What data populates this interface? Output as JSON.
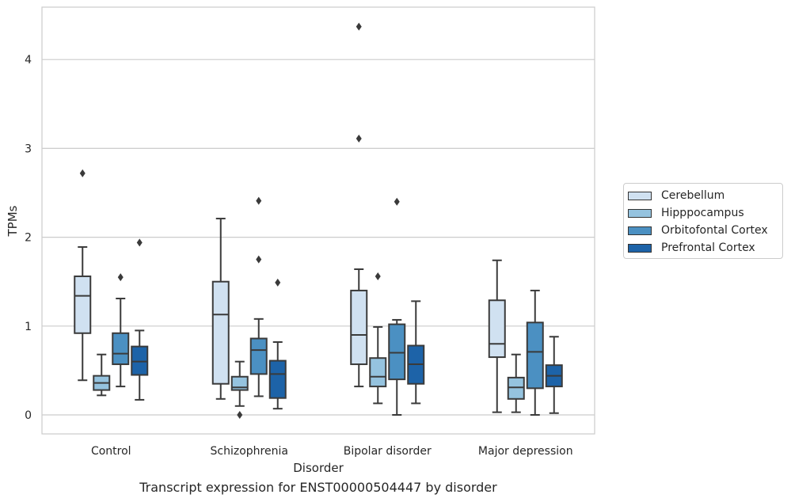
{
  "chart_data": {
    "type": "boxplot",
    "title": "Transcript expression for ENST00000504447 by disorder",
    "xlabel": "Disorder",
    "ylabel": "TPMs",
    "ylim": [
      -0.2,
      4.6
    ],
    "yticks": [
      0,
      1,
      2,
      3,
      4
    ],
    "grid": true,
    "legend_position": "right",
    "categories": [
      "Control",
      "Schizophrenia",
      "Bipolar disorder",
      "Major depression"
    ],
    "series": [
      {
        "name": "Cerebellum",
        "color": "#d0e1f1",
        "boxes": [
          {
            "whislo": 0.39,
            "q1": 0.92,
            "med": 1.34,
            "q3": 1.56,
            "whishi": 1.89,
            "fliers": [
              2.72
            ]
          },
          {
            "whislo": 0.18,
            "q1": 0.35,
            "med": 1.13,
            "q3": 1.5,
            "whishi": 2.21,
            "fliers": []
          },
          {
            "whislo": 0.32,
            "q1": 0.57,
            "med": 0.9,
            "q3": 1.4,
            "whishi": 1.64,
            "fliers": [
              3.11,
              4.37
            ]
          },
          {
            "whislo": 0.03,
            "q1": 0.65,
            "med": 0.8,
            "q3": 1.29,
            "whishi": 1.74,
            "fliers": []
          }
        ]
      },
      {
        "name": "Hipppocampus",
        "color": "#95c3df",
        "boxes": [
          {
            "whislo": 0.22,
            "q1": 0.28,
            "med": 0.36,
            "q3": 0.44,
            "whishi": 0.68,
            "fliers": []
          },
          {
            "whislo": 0.1,
            "q1": 0.28,
            "med": 0.31,
            "q3": 0.43,
            "whishi": 0.6,
            "fliers": [
              0.0
            ]
          },
          {
            "whislo": 0.13,
            "q1": 0.32,
            "med": 0.43,
            "q3": 0.64,
            "whishi": 0.99,
            "fliers": [
              1.56
            ]
          },
          {
            "whislo": 0.03,
            "q1": 0.18,
            "med": 0.31,
            "q3": 0.42,
            "whishi": 0.68,
            "fliers": []
          }
        ]
      },
      {
        "name": "Orbitofontal Cortex",
        "color": "#4b90c2",
        "boxes": [
          {
            "whislo": 0.32,
            "q1": 0.57,
            "med": 0.69,
            "q3": 0.92,
            "whishi": 1.31,
            "fliers": [
              1.55
            ]
          },
          {
            "whislo": 0.21,
            "q1": 0.46,
            "med": 0.73,
            "q3": 0.86,
            "whishi": 1.08,
            "fliers": [
              1.75,
              2.41
            ]
          },
          {
            "whislo": 0.0,
            "q1": 0.4,
            "med": 0.7,
            "q3": 1.02,
            "whishi": 1.07,
            "fliers": [
              2.4
            ]
          },
          {
            "whislo": 0.0,
            "q1": 0.3,
            "med": 0.71,
            "q3": 1.04,
            "whishi": 1.4,
            "fliers": []
          }
        ]
      },
      {
        "name": "Prefrontal Cortex",
        "color": "#1d63a8",
        "boxes": [
          {
            "whislo": 0.17,
            "q1": 0.45,
            "med": 0.6,
            "q3": 0.77,
            "whishi": 0.95,
            "fliers": [
              1.94
            ]
          },
          {
            "whislo": 0.07,
            "q1": 0.19,
            "med": 0.46,
            "q3": 0.61,
            "whishi": 0.82,
            "fliers": [
              1.49
            ]
          },
          {
            "whislo": 0.13,
            "q1": 0.35,
            "med": 0.57,
            "q3": 0.78,
            "whishi": 1.28,
            "fliers": []
          },
          {
            "whislo": 0.02,
            "q1": 0.32,
            "med": 0.44,
            "q3": 0.56,
            "whishi": 0.88,
            "fliers": []
          }
        ]
      }
    ]
  }
}
